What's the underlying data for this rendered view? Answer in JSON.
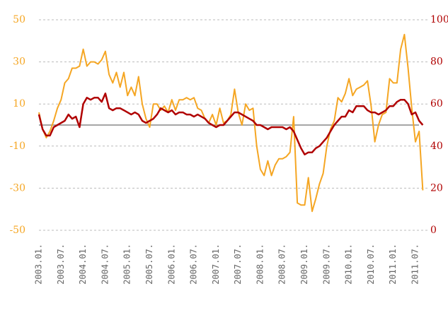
{
  "chart_data": {
    "type": "line",
    "categories": [
      "2003.01.",
      null,
      null,
      null,
      null,
      null,
      "2003.07.",
      null,
      null,
      null,
      null,
      null,
      "2004.01.",
      null,
      null,
      null,
      null,
      null,
      "2004.07.",
      null,
      null,
      null,
      null,
      null,
      "2005.01.",
      null,
      null,
      null,
      null,
      null,
      "2005.07.",
      null,
      null,
      null,
      null,
      null,
      "2006.01.",
      null,
      null,
      null,
      null,
      null,
      "2006.07.",
      null,
      null,
      null,
      null,
      null,
      "2007.01.",
      null,
      null,
      null,
      null,
      null,
      "2007.07.",
      null,
      null,
      null,
      null,
      null,
      "2008.01.",
      null,
      null,
      null,
      null,
      null,
      "2008.07.",
      null,
      null,
      null,
      null,
      null,
      "2009.01.",
      null,
      null,
      null,
      null,
      null,
      "2009.07.",
      null,
      null,
      null,
      null,
      null,
      "2010.01.",
      null,
      null,
      null,
      null,
      null,
      "2010.07.",
      null,
      null,
      null,
      null,
      null,
      "2011.01.",
      null,
      null,
      null,
      null,
      null,
      "2011.07.",
      null,
      null
    ],
    "series": [
      {
        "color": "#f5a623",
        "values": [
          6,
          -2,
          -6,
          -3,
          2,
          8,
          12,
          20,
          22,
          27,
          27,
          28,
          36,
          28,
          30,
          30,
          29,
          31,
          35,
          24,
          20,
          25,
          18,
          25,
          14,
          18,
          14,
          23,
          10,
          3,
          -1,
          10,
          10,
          7,
          9,
          6,
          12,
          7,
          12,
          12,
          13,
          12,
          13,
          8,
          7,
          3,
          1,
          5,
          0,
          8,
          1,
          2,
          5,
          17,
          6,
          0,
          10,
          7,
          8,
          -10,
          -21,
          -24,
          -17,
          -24,
          -19,
          -16,
          -16,
          -15,
          -13,
          4,
          -37,
          -38,
          -38,
          -25,
          -41,
          -35,
          -28,
          -23,
          -10,
          -2,
          2,
          13,
          11,
          15,
          22,
          14,
          17,
          18,
          19,
          21,
          9,
          -8,
          0,
          5,
          6,
          22,
          20,
          20,
          36,
          43,
          27,
          8,
          -8,
          -3,
          -31
        ]
      },
      {
        "color": "#b00000",
        "axis": "y2",
        "values": [
          55,
          48,
          45,
          45,
          49,
          50,
          51,
          52,
          55,
          53,
          54,
          49,
          60,
          63,
          62,
          63,
          63,
          61,
          65,
          58,
          57,
          58,
          58,
          57,
          56,
          55,
          56,
          55,
          52,
          51,
          52,
          53,
          55,
          58,
          57,
          56,
          57,
          55,
          56,
          56,
          55,
          55,
          54,
          55,
          54,
          53,
          51,
          50,
          49,
          50,
          50,
          52,
          54,
          56,
          56,
          55,
          54,
          53,
          52,
          50,
          50,
          49,
          48,
          49,
          49,
          49,
          49,
          48,
          49,
          47,
          43,
          39,
          36,
          37,
          37,
          39,
          40,
          42,
          44,
          47,
          50,
          52,
          54,
          54,
          57,
          56,
          59,
          59,
          59,
          57,
          56,
          56,
          55,
          56,
          57,
          59,
          59,
          61,
          62,
          62,
          60,
          55,
          56,
          52,
          50
        ]
      }
    ],
    "ylim": [
      -50,
      50
    ],
    "yticks": [
      -50,
      -30,
      -10,
      10,
      30,
      50
    ],
    "ytick_color": "#f5a623",
    "y2lim": [
      0,
      100
    ],
    "y2ticks": [
      0,
      20,
      40,
      60,
      80,
      100
    ],
    "y2tick_color": "#b00000",
    "grid": true
  }
}
